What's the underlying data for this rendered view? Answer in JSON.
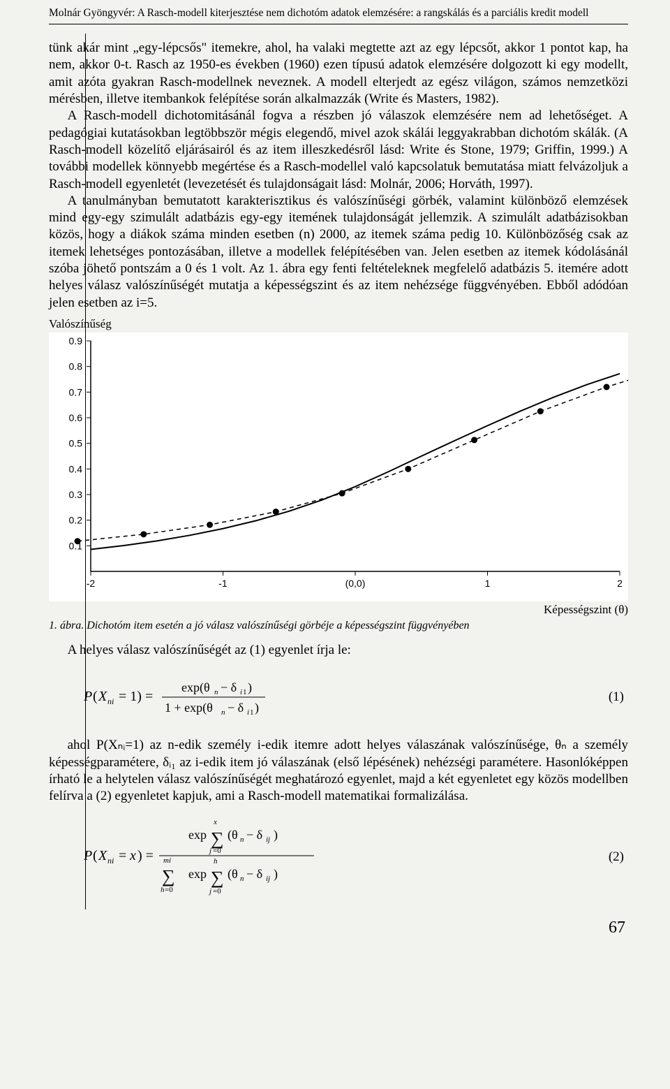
{
  "header": "Molnár Gyöngyvér: A Rasch-modell kiterjesztése nem dichotóm adatok elemzésére: a rangskálás és a parciális kredit modell",
  "para1_continuation": "tünk akár mint „egy-lépcsős\" itemekre, ahol, ha valaki megtette azt az egy lépcsőt, akkor 1 pontot kap, ha nem, akkor 0-t. Rasch az 1950-es években (1960) ezen típusú adatok elemzésére dolgozott ki egy modellt, amit azóta gyakran Rasch-modellnek neveznek. A modell elterjedt az egész világon, számos nemzetközi mérésben, illetve itembankok felépítése során alkalmazzák (Write és Masters, 1982).",
  "para2": "A Rasch-modell dichotomitásánál fogva a részben jó válaszok elemzésére nem ad lehetőséget. A pedagógiai kutatásokban legtöbbször mégis elegendő, mivel azok skálái leggyakrabban dichotóm skálák. (A Rasch-modell közelítő eljárásairól és az item illeszkedésről lásd: Write és Stone, 1979; Griffin, 1999.) A további modellek könnyebb megértése és a Rasch-modellel való kapcsolatuk bemutatása miatt felvázoljuk a Rasch-modell egyenletét (levezetését és tulajdonságait lásd: Molnár, 2006; Horváth, 1997).",
  "para3": "A tanulmányban bemutatott karakterisztikus és valószínűségi görbék, valamint különböző elemzések mind egy-egy szimulált adatbázis egy-egy itemének tulajdonságát jellemzik. A szimulált adatbázisokban közös, hogy a diákok száma minden esetben (n) 2000, az itemek száma pedig 10. Különbözőség csak az itemek lehetséges pontozásában, illetve a modellek felépítésében van. Jelen esetben az itemek kódolásánál szóba jöhető pontszám a 0 és 1 volt. Az 1. ábra egy fenti feltételeknek megfelelő adatbázis 5. itemére adott helyes válasz valószínűségét mutatja a képességszint és az item nehézsége függvényében. Ebből adódóan jelen esetben az i=5.",
  "y_label": "Valószínűség",
  "x_label": "Képességszint (θ)",
  "fig_caption": "1. ábra. Dichotóm item esetén a jó válasz valószínűségi görbéje a képességszint függvényében",
  "after_caption": "A helyes válasz valószínűségét az (1) egyenlet írja le:",
  "eq1_num": "(1)",
  "para_after_eq1": "ahol P(Xₙᵢ=1) az n-edik személy i-edik itemre adott helyes válaszának valószínűsége, θₙ a személy képességparamétere, δᵢ₁ az i-edik item jó válaszának (első lépésének) nehézségi paramétere. Hasonlóképpen írható le a helytelen válasz valószínűségét meghatározó egyenlet, majd a két egyenletet egy közös modellben felírva a (2) egyenletet kapjuk, ami a Rasch-modell matematikai formalizálása.",
  "eq2_num": "(2)",
  "page_number": "67",
  "chart": {
    "type": "line",
    "background_color": "#ffffff",
    "axis_color": "#000000",
    "curve_color": "#000000",
    "dashed_color": "#000000",
    "point_color": "#000000",
    "tick_label_fontsize": 14,
    "xlim": [
      -2,
      2
    ],
    "ylim": [
      0,
      0.9
    ],
    "yticks": [
      0.1,
      0.2,
      0.3,
      0.4,
      0.5,
      0.6,
      0.7,
      0.8,
      0.9
    ],
    "xticks": [
      -2,
      -1,
      0,
      1,
      2
    ],
    "xtick_labels": [
      "-2",
      "-1",
      "(0,0)",
      "1",
      "2"
    ],
    "curve": [
      [
        -2.0,
        0.086
      ],
      [
        -1.75,
        0.101
      ],
      [
        -1.5,
        0.119
      ],
      [
        -1.25,
        0.141
      ],
      [
        -1.0,
        0.167
      ],
      [
        -0.75,
        0.198
      ],
      [
        -0.5,
        0.235
      ],
      [
        -0.25,
        0.279
      ],
      [
        0.0,
        0.331
      ],
      [
        0.25,
        0.389
      ],
      [
        0.5,
        0.45
      ],
      [
        0.75,
        0.51
      ],
      [
        1.0,
        0.569
      ],
      [
        1.25,
        0.626
      ],
      [
        1.5,
        0.68
      ],
      [
        1.75,
        0.729
      ],
      [
        2.0,
        0.772
      ]
    ],
    "dashed": [
      [
        -2.1,
        0.118
      ],
      [
        -1.6,
        0.145
      ],
      [
        -1.1,
        0.182
      ],
      [
        -0.6,
        0.233
      ],
      [
        -0.1,
        0.305
      ],
      [
        0.4,
        0.4
      ],
      [
        0.9,
        0.513
      ],
      [
        1.4,
        0.625
      ],
      [
        1.9,
        0.72
      ],
      [
        2.1,
        0.752
      ]
    ],
    "points": [
      [
        -2.1,
        0.118
      ],
      [
        -1.6,
        0.145
      ],
      [
        -1.1,
        0.182
      ],
      [
        -0.6,
        0.233
      ],
      [
        -0.1,
        0.305
      ],
      [
        0.4,
        0.4
      ],
      [
        0.9,
        0.513
      ],
      [
        1.4,
        0.625
      ],
      [
        1.9,
        0.72
      ]
    ]
  },
  "colors": {
    "page_bg": "#f2f2ef",
    "text": "#000000"
  }
}
